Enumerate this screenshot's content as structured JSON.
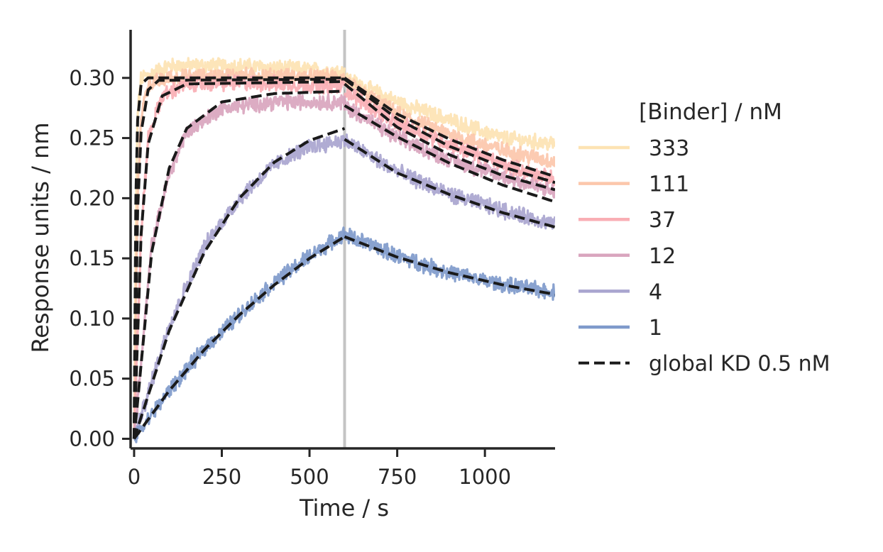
{
  "chart_data": {
    "type": "line",
    "xlabel": "Time / s",
    "ylabel": "Response units / nm",
    "xlim": [
      -10,
      1200
    ],
    "ylim": [
      -0.008,
      0.34
    ],
    "xticks": [
      0,
      250,
      500,
      750,
      1000
    ],
    "xtick_labels": [
      "0",
      "250",
      "500",
      "750",
      "1000"
    ],
    "yticks": [
      0.0,
      0.05,
      0.1,
      0.15,
      0.2,
      0.25,
      0.3
    ],
    "ytick_labels": [
      "0.00",
      "0.05",
      "0.10",
      "0.15",
      "0.20",
      "0.25",
      "0.30"
    ],
    "dissociation_start": 600,
    "grid": false,
    "legend": {
      "title": "[Binder] / nM",
      "placement": "right",
      "fit_label": "global KD 0.5 nM"
    },
    "fit_style": {
      "color": "#1a1a1a",
      "dashed": true
    },
    "series": [
      {
        "name": "333",
        "color": "#fde3b3",
        "association": [
          [
            0,
            0.0
          ],
          [
            5,
            0.18
          ],
          [
            10,
            0.27
          ],
          [
            20,
            0.3
          ],
          [
            100,
            0.31
          ],
          [
            300,
            0.31
          ],
          [
            600,
            0.305
          ]
        ],
        "dissociation": [
          [
            600,
            0.3
          ],
          [
            750,
            0.28
          ],
          [
            900,
            0.265
          ],
          [
            1050,
            0.25
          ],
          [
            1200,
            0.245
          ]
        ],
        "fit_association": [
          [
            0,
            0.0
          ],
          [
            5,
            0.2
          ],
          [
            10,
            0.265
          ],
          [
            20,
            0.295
          ],
          [
            40,
            0.3
          ],
          [
            600,
            0.3
          ]
        ],
        "fit_dissociation": [
          [
            600,
            0.3
          ],
          [
            750,
            0.27
          ],
          [
            900,
            0.249
          ],
          [
            1050,
            0.232
          ],
          [
            1200,
            0.218
          ]
        ]
      },
      {
        "name": "111",
        "color": "#fcc7ab",
        "association": [
          [
            0,
            0.0
          ],
          [
            10,
            0.2
          ],
          [
            20,
            0.27
          ],
          [
            40,
            0.295
          ],
          [
            100,
            0.3
          ],
          [
            300,
            0.302
          ],
          [
            600,
            0.3
          ]
        ],
        "dissociation": [
          [
            600,
            0.297
          ],
          [
            750,
            0.27
          ],
          [
            900,
            0.253
          ],
          [
            1050,
            0.24
          ],
          [
            1200,
            0.23
          ]
        ],
        "fit_association": [
          [
            0,
            0.0
          ],
          [
            10,
            0.19
          ],
          [
            20,
            0.255
          ],
          [
            40,
            0.29
          ],
          [
            70,
            0.298
          ],
          [
            600,
            0.299
          ]
        ],
        "fit_dissociation": [
          [
            600,
            0.299
          ],
          [
            750,
            0.266
          ],
          [
            900,
            0.243
          ],
          [
            1050,
            0.226
          ],
          [
            1200,
            0.213
          ]
        ]
      },
      {
        "name": "37",
        "color": "#f9aeb4",
        "association": [
          [
            0,
            0.0
          ],
          [
            20,
            0.17
          ],
          [
            40,
            0.25
          ],
          [
            80,
            0.285
          ],
          [
            150,
            0.295
          ],
          [
            300,
            0.296
          ],
          [
            600,
            0.293
          ]
        ],
        "dissociation": [
          [
            600,
            0.29
          ],
          [
            750,
            0.262
          ],
          [
            900,
            0.245
          ],
          [
            1050,
            0.228
          ],
          [
            1200,
            0.215
          ]
        ],
        "fit_association": [
          [
            0,
            0.0
          ],
          [
            20,
            0.17
          ],
          [
            40,
            0.245
          ],
          [
            80,
            0.285
          ],
          [
            150,
            0.295
          ],
          [
            600,
            0.297
          ]
        ],
        "fit_dissociation": [
          [
            600,
            0.295
          ],
          [
            750,
            0.259
          ],
          [
            900,
            0.236
          ],
          [
            1050,
            0.219
          ],
          [
            1200,
            0.207
          ]
        ]
      },
      {
        "name": "12",
        "color": "#d9a5be",
        "association": [
          [
            0,
            0.0
          ],
          [
            50,
            0.16
          ],
          [
            100,
            0.22
          ],
          [
            150,
            0.255
          ],
          [
            250,
            0.275
          ],
          [
            400,
            0.28
          ],
          [
            600,
            0.28
          ]
        ],
        "dissociation": [
          [
            600,
            0.277
          ],
          [
            750,
            0.25
          ],
          [
            900,
            0.232
          ],
          [
            1050,
            0.218
          ],
          [
            1200,
            0.205
          ]
        ],
        "fit_association": [
          [
            0,
            0.0
          ],
          [
            50,
            0.155
          ],
          [
            100,
            0.225
          ],
          [
            150,
            0.258
          ],
          [
            250,
            0.28
          ],
          [
            400,
            0.287
          ],
          [
            600,
            0.289
          ]
        ],
        "fit_dissociation": [
          [
            600,
            0.277
          ],
          [
            750,
            0.251
          ],
          [
            900,
            0.229
          ],
          [
            1050,
            0.211
          ],
          [
            1200,
            0.197
          ]
        ]
      },
      {
        "name": "4",
        "color": "#a9a5cf",
        "association": [
          [
            0,
            0.0
          ],
          [
            100,
            0.095
          ],
          [
            200,
            0.16
          ],
          [
            300,
            0.2
          ],
          [
            400,
            0.228
          ],
          [
            500,
            0.243
          ],
          [
            600,
            0.248
          ]
        ],
        "dissociation": [
          [
            600,
            0.248
          ],
          [
            750,
            0.222
          ],
          [
            900,
            0.203
          ],
          [
            1050,
            0.19
          ],
          [
            1200,
            0.178
          ]
        ],
        "fit_association": [
          [
            0,
            0.0
          ],
          [
            100,
            0.09
          ],
          [
            200,
            0.155
          ],
          [
            300,
            0.2
          ],
          [
            400,
            0.23
          ],
          [
            500,
            0.248
          ],
          [
            600,
            0.258
          ]
        ],
        "fit_dissociation": [
          [
            600,
            0.249
          ],
          [
            750,
            0.221
          ],
          [
            900,
            0.203
          ],
          [
            1050,
            0.188
          ],
          [
            1200,
            0.176
          ]
        ]
      },
      {
        "name": "1",
        "color": "#7f9acb",
        "association": [
          [
            0,
            0.0
          ],
          [
            100,
            0.04
          ],
          [
            200,
            0.075
          ],
          [
            300,
            0.103
          ],
          [
            400,
            0.13
          ],
          [
            500,
            0.152
          ],
          [
            600,
            0.17
          ]
        ],
        "dissociation": [
          [
            600,
            0.17
          ],
          [
            750,
            0.152
          ],
          [
            900,
            0.138
          ],
          [
            1050,
            0.128
          ],
          [
            1200,
            0.122
          ]
        ],
        "fit_association": [
          [
            0,
            0.0
          ],
          [
            100,
            0.04
          ],
          [
            200,
            0.074
          ],
          [
            300,
            0.103
          ],
          [
            400,
            0.128
          ],
          [
            500,
            0.15
          ],
          [
            600,
            0.168
          ]
        ],
        "fit_dissociation": [
          [
            600,
            0.168
          ],
          [
            750,
            0.151
          ],
          [
            900,
            0.138
          ],
          [
            1050,
            0.128
          ],
          [
            1200,
            0.12
          ]
        ]
      }
    ]
  }
}
